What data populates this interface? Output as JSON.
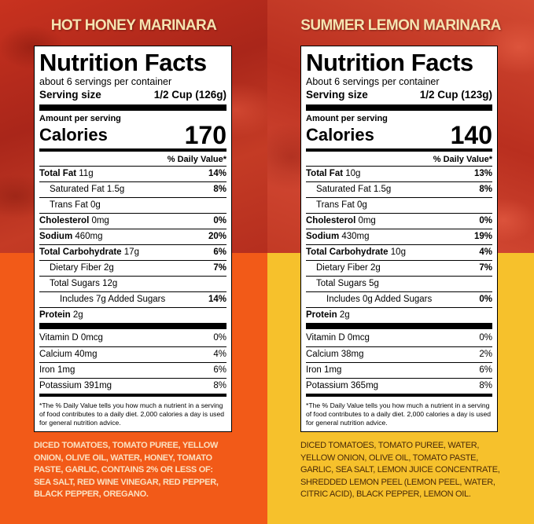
{
  "panels": [
    {
      "title": "HOT HONEY MARINARA",
      "nf_title": "Nutrition Facts",
      "servings_per_container": "about 6 servings per container",
      "serving_size_label": "Serving size",
      "serving_size_value": "1/2 Cup (126g)",
      "amount_per_serving": "Amount per serving",
      "calories_label": "Calories",
      "calories_value": "170",
      "dv_header": "% Daily Value*",
      "nutrients": [
        {
          "bold": "Total Fat",
          "text": " 11g",
          "pct": "14%"
        },
        {
          "bold": "",
          "text": "Saturated Fat 1.5g",
          "pct": "8%"
        },
        {
          "bold": "",
          "text": "Trans Fat 0g",
          "pct": ""
        },
        {
          "bold": "Cholesterol",
          "text": " 0mg",
          "pct": "0%"
        },
        {
          "bold": "Sodium",
          "text": " 460mg",
          "pct": "20%"
        },
        {
          "bold": "Total Carbohydrate",
          "text": " 17g",
          "pct": "6%"
        },
        {
          "bold": "",
          "text": "Dietary Fiber 2g",
          "pct": "7%"
        },
        {
          "bold": "",
          "text": "Total Sugars 12g",
          "pct": ""
        },
        {
          "bold": "",
          "text": "Includes 7g Added Sugars",
          "pct": "14%"
        },
        {
          "bold": "Protein",
          "text": " 2g",
          "pct": ""
        }
      ],
      "vitamins": [
        {
          "text": "Vitamin D 0mcg",
          "pct": "0%"
        },
        {
          "text": "Calcium 40mg",
          "pct": "4%"
        },
        {
          "text": "Iron 1mg",
          "pct": "6%"
        },
        {
          "text": "Potassium 391mg",
          "pct": "8%"
        }
      ],
      "footnote": "*The % Daily Value tells you how much a nutrient in a serving of food contributes to a daily diet. 2,000 calories a day is used for general nutrition advice.",
      "ingredients": "DICED TOMATOES, TOMATO PUREE, YELLOW ONION, OLIVE OIL, WATER, HONEY, TOMATO PASTE, GARLIC, CONTAINS 2% OR LESS OF: SEA SALT, RED WINE VINEGAR, RED PEPPER, BLACK PEPPER, OREGANO."
    },
    {
      "title": "SUMMER LEMON MARINARA",
      "nf_title": "Nutrition Facts",
      "servings_per_container": "About 6 servings per container",
      "serving_size_label": "Serving size",
      "serving_size_value": "1/2 Cup (123g)",
      "amount_per_serving": "Amount per serving",
      "calories_label": "Calories",
      "calories_value": "140",
      "dv_header": "% Daily Value*",
      "nutrients": [
        {
          "bold": "Total Fat",
          "text": " 10g",
          "pct": "13%"
        },
        {
          "bold": "",
          "text": "Saturated Fat 1.5g",
          "pct": "8%"
        },
        {
          "bold": "",
          "text": "Trans Fat 0g",
          "pct": ""
        },
        {
          "bold": "Cholesterol",
          "text": " 0mg",
          "pct": "0%"
        },
        {
          "bold": "Sodium",
          "text": " 430mg",
          "pct": "19%"
        },
        {
          "bold": "Total Carbohydrate",
          "text": " 10g",
          "pct": "4%"
        },
        {
          "bold": "",
          "text": "Dietary Fiber 2g",
          "pct": "7%"
        },
        {
          "bold": "",
          "text": "Total Sugars 5g",
          "pct": ""
        },
        {
          "bold": "",
          "text": "Includes 0g Added Sugars",
          "pct": "0%"
        },
        {
          "bold": "Protein",
          "text": " 2g",
          "pct": ""
        }
      ],
      "vitamins": [
        {
          "text": "Vitamin D 0mcg",
          "pct": "0%"
        },
        {
          "text": "Calcium 38mg",
          "pct": "2%"
        },
        {
          "text": "Iron 1mg",
          "pct": "6%"
        },
        {
          "text": "Potassium 365mg",
          "pct": "8%"
        }
      ],
      "footnote": "*The % Daily Value tells you how much a nutrient in a serving of food contributes to a daily diet. 2,000 calories a day is used for general nutrition advice.",
      "ingredients": "DICED TOMATOES, TOMATO PUREE, WATER, YELLOW ONION, OLIVE OIL, TOMATO PASTE, GARLIC, SEA SALT, LEMON JUICE CONCENTRATE, SHREDDED LEMON PEEL (LEMON PEEL, WATER, CITRIC ACID), BLACK PEPPER, LEMON OIL."
    }
  ]
}
